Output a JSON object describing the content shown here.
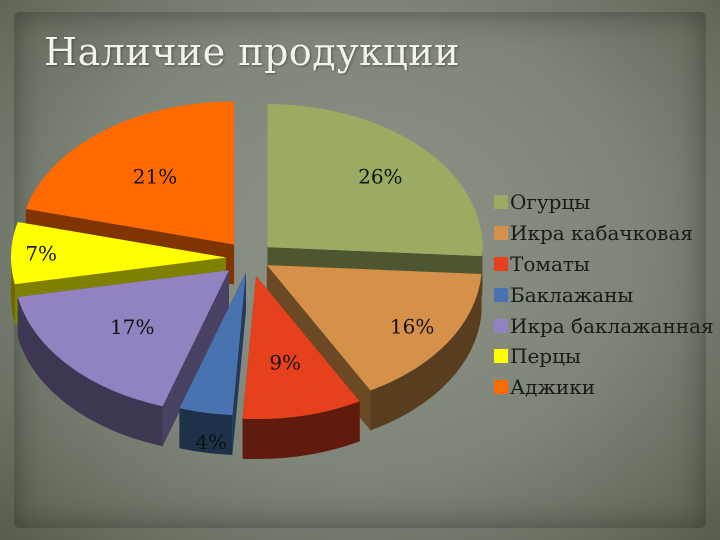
{
  "title": "Наличие продукции",
  "chart_data": {
    "type": "pie",
    "style": "3d-exploded",
    "categories": [
      "Огурцы",
      "Икра кабачковая",
      "Томаты",
      "Баклажаны",
      "Икра баклажанная",
      "Перцы",
      "Аджики"
    ],
    "values": [
      26,
      16,
      9,
      4,
      17,
      7,
      21
    ],
    "data_labels": [
      "26%",
      "16%",
      "9%",
      "4%",
      "17%",
      "7%",
      "21%"
    ],
    "colors": [
      "#9bab62",
      "#d5914a",
      "#e6401c",
      "#4873b0",
      "#9282c2",
      "#ffff00",
      "#ff6a00"
    ],
    "legend_position": "right"
  }
}
